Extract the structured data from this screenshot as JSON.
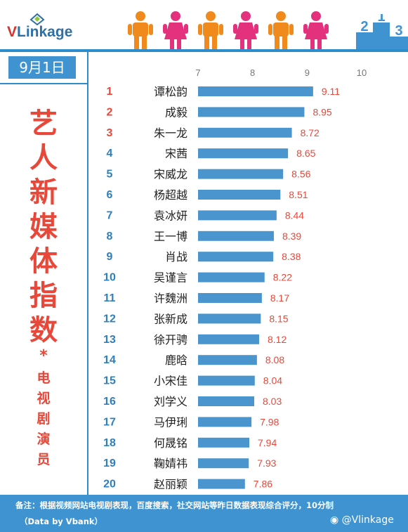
{
  "logo": {
    "v": "V",
    "rest": "Linkage"
  },
  "date": "9月1日",
  "title_chars": [
    "艺",
    "人",
    "新",
    "媒",
    "体",
    "指",
    "数"
  ],
  "title_star": "*",
  "subtitle_chars": [
    "电",
    "视",
    "剧",
    "演",
    "员"
  ],
  "podium_numbers": {
    "first": "1",
    "second": "2",
    "third": "3"
  },
  "colors": {
    "bar": "#4a95cd",
    "rank_top3": "#e8483a",
    "rank_other": "#2f7fbd",
    "value": "#e8483a",
    "accent": "#2f8ccc"
  },
  "footer": {
    "note": "备注：根据视频网站电视剧表现，百度搜索，社交网站等昨日数据表现综合评分，10分制",
    "source": "（Data by Vbank）",
    "weibo": "@Vlinkage"
  },
  "chart_data": {
    "type": "bar",
    "orientation": "horizontal",
    "title": "",
    "xlim": [
      7,
      10
    ],
    "xticks": [
      "7",
      "8",
      "9",
      "10"
    ],
    "ranks": [
      "1",
      "2",
      "3",
      "4",
      "5",
      "6",
      "7",
      "8",
      "9",
      "10",
      "11",
      "12",
      "13",
      "14",
      "15",
      "16",
      "17",
      "18",
      "19",
      "20"
    ],
    "categories": [
      "谭松韵",
      "成毅",
      "朱一龙",
      "宋茜",
      "宋威龙",
      "杨超越",
      "袁冰妍",
      "王一博",
      "肖战",
      "吴谨言",
      "许魏洲",
      "张新成",
      "徐开骋",
      "鹿晗",
      "小宋佳",
      "刘学义",
      "马伊琍",
      "何晟铭",
      "鞠婧祎",
      "赵丽颖"
    ],
    "values": [
      9.11,
      8.95,
      8.72,
      8.65,
      8.56,
      8.51,
      8.44,
      8.39,
      8.38,
      8.22,
      8.17,
      8.15,
      8.12,
      8.08,
      8.04,
      8.03,
      7.98,
      7.94,
      7.93,
      7.86
    ],
    "value_labels": [
      "9.11",
      "8.95",
      "8.72",
      "8.65",
      "8.56",
      "8.51",
      "8.44",
      "8.39",
      "8.38",
      "8.22",
      "8.17",
      "8.15",
      "8.12",
      "8.08",
      "8.04",
      "8.03",
      "7.98",
      "7.94",
      "7.93",
      "7.86"
    ]
  }
}
